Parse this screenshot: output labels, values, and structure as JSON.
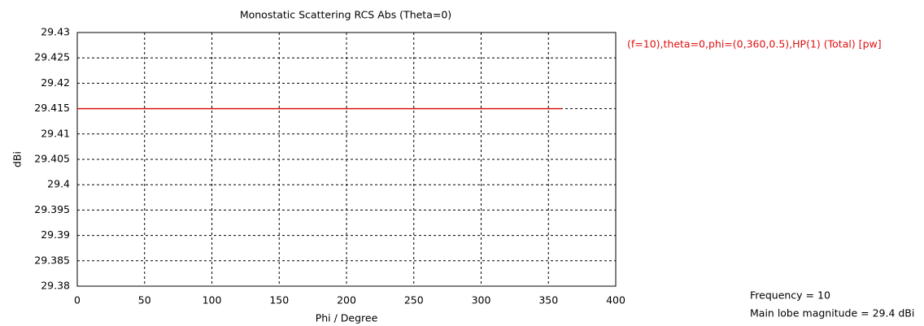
{
  "chart_data": {
    "type": "line",
    "title": "Monostatic Scattering RCS Abs (Theta=0)",
    "x_label": "Phi / Degree",
    "y_label": "dBi",
    "x": [
      0,
      360
    ],
    "series": [
      {
        "name": "(f=10),theta=0,phi=(0,360,0.5),HP(1) (Total) [pw]",
        "color": "#e01010",
        "values": [
          29.415,
          29.415
        ]
      }
    ],
    "xlim": [
      0,
      400
    ],
    "xticks": [
      0,
      50,
      100,
      150,
      200,
      250,
      300,
      350,
      400
    ],
    "ylim": [
      29.38,
      29.43
    ],
    "yticks": [
      29.38,
      29.385,
      29.39,
      29.395,
      29.4,
      29.405,
      29.41,
      29.415,
      29.42,
      29.425,
      29.43
    ],
    "grid": true,
    "legend": "right",
    "annotations": [
      "Frequency = 10",
      "Main lobe magnitude = 29.4 dBi"
    ]
  }
}
